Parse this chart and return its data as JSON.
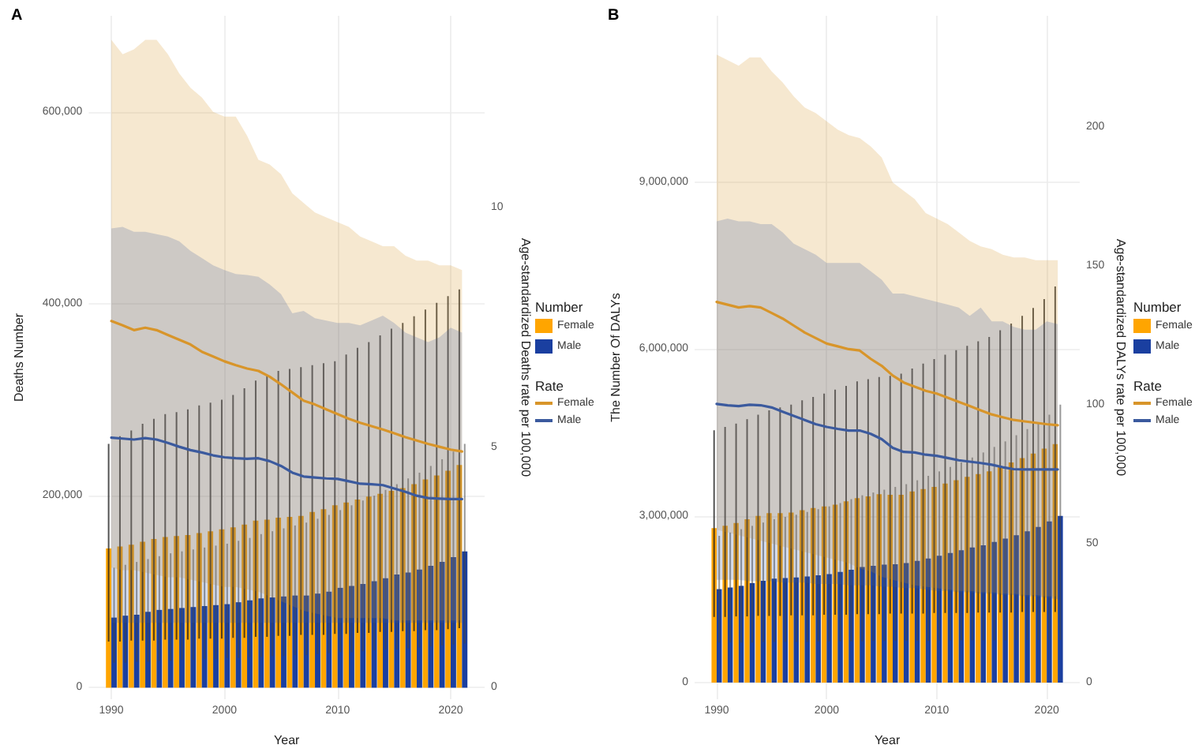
{
  "chart_data": [
    {
      "type": "bar",
      "title": "A",
      "xlabel": "Year",
      "ylabel": "Deaths Number",
      "y2label": "Age-standardized Deaths rate per 100,000",
      "legend_title": [
        "Number",
        "Rate"
      ],
      "legend": "right",
      "grid": true,
      "x": [
        1990,
        1991,
        1992,
        1993,
        1994,
        1995,
        1996,
        1997,
        1998,
        1999,
        2000,
        2001,
        2002,
        2003,
        2004,
        2005,
        2006,
        2007,
        2008,
        2009,
        2010,
        2011,
        2012,
        2013,
        2014,
        2015,
        2016,
        2017,
        2018,
        2019,
        2020,
        2021
      ],
      "xlim": [
        1988,
        2023
      ],
      "xticks": [
        1990,
        2000,
        2010,
        2020
      ],
      "ylim": [
        -12000,
        700000
      ],
      "yticks": [
        0,
        {
          "value": 200000,
          "label": "200,000"
        },
        {
          "value": 400000,
          "label": "400,000"
        },
        {
          "value": 600000,
          "label": "600,000"
        }
      ],
      "y2lim": [
        -0.24,
        14
      ],
      "y2ticks": [
        0,
        5,
        10
      ],
      "series": [
        {
          "name": "Female",
          "color": "#ffa500",
          "values": [
            145000,
            147000,
            149000,
            152000,
            155000,
            157000,
            158000,
            159000,
            161000,
            163000,
            165000,
            167000,
            170000,
            174000,
            175000,
            177000,
            178000,
            179000,
            183000,
            186000,
            190000,
            193000,
            196000,
            199000,
            202000,
            205000,
            208000,
            212000,
            217000,
            221000,
            226000,
            232000
          ],
          "errors": [
            [
              48000,
              254000
            ],
            [
              48000,
              262000
            ],
            [
              49000,
              268000
            ],
            [
              49000,
              275000
            ],
            [
              49000,
              280000
            ],
            [
              50000,
              285000
            ],
            [
              50000,
              287000
            ],
            [
              50000,
              290000
            ],
            [
              51000,
              294000
            ],
            [
              51000,
              297000
            ],
            [
              51000,
              300000
            ],
            [
              52000,
              305000
            ],
            [
              52000,
              312000
            ],
            [
              53000,
              320000
            ],
            [
              53000,
              325000
            ],
            [
              54000,
              330000
            ],
            [
              54000,
              332000
            ],
            [
              55000,
              334000
            ],
            [
              55000,
              336000
            ],
            [
              55000,
              338000
            ],
            [
              56000,
              340000
            ],
            [
              56000,
              347000
            ],
            [
              57000,
              354000
            ],
            [
              57000,
              360000
            ],
            [
              58000,
              367000
            ],
            [
              58000,
              374000
            ],
            [
              59000,
              380000
            ],
            [
              59000,
              387000
            ],
            [
              60000,
              394000
            ],
            [
              60000,
              401000
            ],
            [
              61000,
              408000
            ],
            [
              62000,
              415000
            ]
          ]
        },
        {
          "name": "Male",
          "color": "#1a3fa0",
          "values": [
            73000,
            75000,
            76000,
            79000,
            81000,
            82000,
            83000,
            84000,
            85000,
            86000,
            87000,
            89000,
            91000,
            93000,
            94000,
            95000,
            96000,
            96000,
            98000,
            100000,
            104000,
            106000,
            108000,
            111000,
            114000,
            118000,
            120000,
            123000,
            127000,
            131000,
            136000,
            142000
          ],
          "errors": [
            [
              26000,
              125000
            ],
            [
              26000,
              128000
            ],
            [
              27000,
              131000
            ],
            [
              27000,
              134000
            ],
            [
              28000,
              137000
            ],
            [
              28000,
              140000
            ],
            [
              29000,
              142000
            ],
            [
              29000,
              144000
            ],
            [
              30000,
              146000
            ],
            [
              30000,
              148000
            ],
            [
              31000,
              150000
            ],
            [
              31000,
              153000
            ],
            [
              32000,
              156000
            ],
            [
              32000,
              160000
            ],
            [
              33000,
              163000
            ],
            [
              33000,
              166000
            ],
            [
              34000,
              169000
            ],
            [
              34000,
              172000
            ],
            [
              35000,
              176000
            ],
            [
              36000,
              180000
            ],
            [
              37000,
              185000
            ],
            [
              37000,
              190000
            ],
            [
              38000,
              195000
            ],
            [
              39000,
              200000
            ],
            [
              40000,
              206000
            ],
            [
              40000,
              212000
            ],
            [
              41000,
              218000
            ],
            [
              42000,
              224000
            ],
            [
              43000,
              231000
            ],
            [
              44000,
              238000
            ],
            [
              45000,
              246000
            ],
            [
              46000,
              254000
            ]
          ]
        },
        {
          "name": "Female",
          "type": "line",
          "axis": "y2",
          "color": "#d8952a",
          "values": [
            7.64,
            7.55,
            7.45,
            7.5,
            7.45,
            7.35,
            7.25,
            7.15,
            7.0,
            6.9,
            6.8,
            6.72,
            6.65,
            6.6,
            6.48,
            6.32,
            6.15,
            5.98,
            5.9,
            5.8,
            5.7,
            5.6,
            5.52,
            5.45,
            5.38,
            5.3,
            5.22,
            5.15,
            5.08,
            5.02,
            4.96,
            4.92
          ],
          "lower": [
            2.5,
            2.45,
            2.45,
            2.4,
            2.35,
            2.3,
            2.3,
            2.25,
            2.2,
            2.15,
            2.1,
            2.1,
            2.05,
            2.0,
            1.9,
            1.8,
            1.7,
            1.6,
            1.55,
            1.5,
            1.45,
            1.45,
            1.45,
            1.45,
            1.45,
            1.4,
            1.4,
            1.4,
            1.4,
            1.4,
            1.4,
            1.4
          ],
          "upper": [
            13.5,
            13.2,
            13.3,
            13.5,
            13.5,
            13.2,
            12.8,
            12.5,
            12.3,
            12.0,
            11.9,
            11.9,
            11.5,
            11.0,
            10.9,
            10.7,
            10.3,
            10.1,
            9.9,
            9.8,
            9.7,
            9.6,
            9.4,
            9.3,
            9.2,
            9.2,
            9.0,
            8.9,
            8.9,
            8.8,
            8.8,
            8.7
          ]
        },
        {
          "name": "Male",
          "type": "line",
          "axis": "y2",
          "color": "#3b5a9e",
          "values": [
            5.21,
            5.19,
            5.17,
            5.2,
            5.17,
            5.1,
            5.02,
            4.95,
            4.9,
            4.84,
            4.8,
            4.78,
            4.77,
            4.78,
            4.72,
            4.62,
            4.48,
            4.4,
            4.38,
            4.36,
            4.35,
            4.3,
            4.25,
            4.24,
            4.22,
            4.15,
            4.08,
            4.0,
            3.95,
            3.94,
            3.93,
            3.93
          ],
          "lower": [
            1.35,
            1.35,
            1.35,
            1.35,
            1.35,
            1.35,
            1.35,
            1.35,
            1.35,
            1.35,
            1.35,
            1.35,
            1.35,
            1.35,
            1.35,
            1.35,
            1.35,
            1.35,
            1.35,
            1.35,
            1.35,
            1.35,
            1.35,
            1.35,
            1.35,
            1.35,
            1.35,
            1.35,
            1.35,
            1.35,
            1.35,
            1.35
          ],
          "upper": [
            9.57,
            9.6,
            9.5,
            9.5,
            9.45,
            9.4,
            9.3,
            9.1,
            8.95,
            8.8,
            8.7,
            8.62,
            8.6,
            8.56,
            8.4,
            8.2,
            7.8,
            7.85,
            7.7,
            7.65,
            7.6,
            7.6,
            7.55,
            7.65,
            7.75,
            7.6,
            7.4,
            7.3,
            7.2,
            7.3,
            7.5,
            7.4
          ]
        }
      ]
    },
    {
      "type": "bar",
      "title": "B",
      "xlabel": "Year",
      "ylabel": "The Number Of DALYs",
      "y2label": "Age-standardized DALYs rate per 100,000",
      "legend_title": [
        "Number",
        "Rate"
      ],
      "legend": "right",
      "grid": true,
      "x": [
        1990,
        1991,
        1992,
        1993,
        1994,
        1995,
        1996,
        1997,
        1998,
        1999,
        2000,
        2001,
        2002,
        2003,
        2004,
        2005,
        2006,
        2007,
        2008,
        2009,
        2010,
        2011,
        2012,
        2013,
        2014,
        2015,
        2016,
        2017,
        2018,
        2019,
        2020,
        2021
      ],
      "xlim": [
        1988,
        2023
      ],
      "xticks": [
        1990,
        2000,
        2010,
        2020
      ],
      "ylim": [
        -300000,
        12000000
      ],
      "yticks": [
        0,
        {
          "value": 3000000,
          "label": "3,000,000"
        },
        {
          "value": 6000000,
          "label": "6,000,000"
        },
        {
          "value": 9000000,
          "label": "9,000,000"
        }
      ],
      "y2lim": [
        -6,
        240
      ],
      "y2ticks": [
        0,
        50,
        100,
        150,
        200
      ],
      "series": [
        {
          "name": "Female",
          "color": "#ffa500",
          "values": [
            2780000,
            2820000,
            2870000,
            2940000,
            3000000,
            3050000,
            3050000,
            3060000,
            3100000,
            3140000,
            3170000,
            3200000,
            3260000,
            3320000,
            3350000,
            3390000,
            3380000,
            3380000,
            3440000,
            3480000,
            3520000,
            3580000,
            3640000,
            3700000,
            3750000,
            3800000,
            3880000,
            3960000,
            4040000,
            4120000,
            4210000,
            4290000
          ],
          "errors": [
            [
              1180000,
              4540000
            ],
            [
              1180000,
              4600000
            ],
            [
              1190000,
              4660000
            ],
            [
              1190000,
              4740000
            ],
            [
              1200000,
              4820000
            ],
            [
              1200000,
              4900000
            ],
            [
              1200000,
              4950000
            ],
            [
              1210000,
              5000000
            ],
            [
              1210000,
              5080000
            ],
            [
              1210000,
              5140000
            ],
            [
              1220000,
              5200000
            ],
            [
              1220000,
              5270000
            ],
            [
              1220000,
              5340000
            ],
            [
              1230000,
              5420000
            ],
            [
              1230000,
              5460000
            ],
            [
              1230000,
              5500000
            ],
            [
              1240000,
              5520000
            ],
            [
              1240000,
              5560000
            ],
            [
              1240000,
              5650000
            ],
            [
              1240000,
              5740000
            ],
            [
              1250000,
              5820000
            ],
            [
              1250000,
              5900000
            ],
            [
              1250000,
              5980000
            ],
            [
              1250000,
              6060000
            ],
            [
              1260000,
              6140000
            ],
            [
              1260000,
              6220000
            ],
            [
              1260000,
              6340000
            ],
            [
              1260000,
              6460000
            ],
            [
              1270000,
              6600000
            ],
            [
              1270000,
              6740000
            ],
            [
              1270000,
              6900000
            ],
            [
              1270000,
              7130000
            ]
          ]
        },
        {
          "name": "Male",
          "color": "#1a3fa0",
          "values": [
            1680000,
            1710000,
            1740000,
            1790000,
            1830000,
            1870000,
            1880000,
            1890000,
            1910000,
            1930000,
            1950000,
            1990000,
            2030000,
            2080000,
            2100000,
            2120000,
            2130000,
            2150000,
            2190000,
            2230000,
            2280000,
            2330000,
            2380000,
            2430000,
            2470000,
            2530000,
            2590000,
            2650000,
            2720000,
            2800000,
            2900000,
            3000000
          ],
          "errors": [
            [
              720000,
              2640000
            ],
            [
              720000,
              2700000
            ],
            [
              720000,
              2760000
            ],
            [
              720000,
              2820000
            ],
            [
              730000,
              2880000
            ],
            [
              730000,
              2940000
            ],
            [
              730000,
              2980000
            ],
            [
              730000,
              3020000
            ],
            [
              730000,
              3070000
            ],
            [
              740000,
              3120000
            ],
            [
              740000,
              3170000
            ],
            [
              740000,
              3230000
            ],
            [
              740000,
              3300000
            ],
            [
              740000,
              3370000
            ],
            [
              750000,
              3420000
            ],
            [
              750000,
              3470000
            ],
            [
              750000,
              3520000
            ],
            [
              750000,
              3570000
            ],
            [
              750000,
              3640000
            ],
            [
              750000,
              3720000
            ],
            [
              760000,
              3800000
            ],
            [
              760000,
              3880000
            ],
            [
              760000,
              3960000
            ],
            [
              760000,
              4050000
            ],
            [
              760000,
              4140000
            ],
            [
              760000,
              4240000
            ],
            [
              760000,
              4340000
            ],
            [
              770000,
              4450000
            ],
            [
              770000,
              4560000
            ],
            [
              770000,
              4680000
            ],
            [
              770000,
              4820000
            ],
            [
              770000,
              5000000
            ]
          ]
        },
        {
          "name": "Female",
          "type": "line",
          "axis": "y2",
          "color": "#d8952a",
          "values": [
            137,
            136,
            135,
            135.5,
            135,
            133,
            131,
            128.5,
            126,
            124,
            122,
            121,
            120,
            119.5,
            116.5,
            114,
            110.5,
            108,
            106.5,
            105,
            104,
            102.5,
            101,
            99.5,
            98,
            96.5,
            95.5,
            94.5,
            94,
            93.5,
            93,
            92.6
          ],
          "lower": [
            55,
            54,
            53,
            52,
            51,
            50,
            49,
            48,
            47,
            46,
            45,
            44,
            43,
            41,
            40,
            38,
            37,
            36,
            35,
            34.5,
            34,
            33.5,
            33,
            33,
            32.5,
            32.5,
            32,
            32,
            31.5,
            31.5,
            31,
            31
          ],
          "upper": [
            226,
            224,
            222,
            225,
            225,
            220,
            216,
            211,
            207,
            205,
            202,
            199,
            197,
            196,
            193,
            189,
            180,
            177,
            174,
            169,
            167,
            165,
            162,
            159,
            157,
            156,
            154,
            153,
            153,
            152,
            152,
            152
          ]
        },
        {
          "name": "Male",
          "type": "line",
          "axis": "y2",
          "color": "#3b5a9e",
          "values": [
            100.3,
            99.8,
            99.5,
            100,
            99.8,
            99,
            97.5,
            96,
            94.5,
            93,
            92,
            91.3,
            90.7,
            90.7,
            89.5,
            87.6,
            84.5,
            83,
            82.8,
            82,
            81.6,
            80.8,
            80,
            79.5,
            79,
            78.4,
            77.5,
            76.8,
            76.7,
            76.7,
            76.7,
            76.7
          ],
          "lower": [
            37,
            37,
            37,
            36.5,
            36.5,
            36.5,
            36,
            36,
            36,
            35.5,
            35.5,
            35.5,
            35,
            35,
            35,
            34.5,
            34.5,
            34,
            34,
            33.5,
            33,
            33,
            32.5,
            32.5,
            32,
            32,
            31.5,
            31.5,
            31,
            31,
            30.5,
            30
          ],
          "upper": [
            166,
            167,
            166,
            166,
            165,
            165,
            162,
            158,
            156,
            154,
            151,
            151,
            151,
            151,
            148,
            145,
            140,
            140,
            139,
            138,
            137,
            136,
            135,
            132,
            135,
            130,
            130,
            128,
            127,
            127,
            130,
            129
          ]
        }
      ]
    }
  ]
}
